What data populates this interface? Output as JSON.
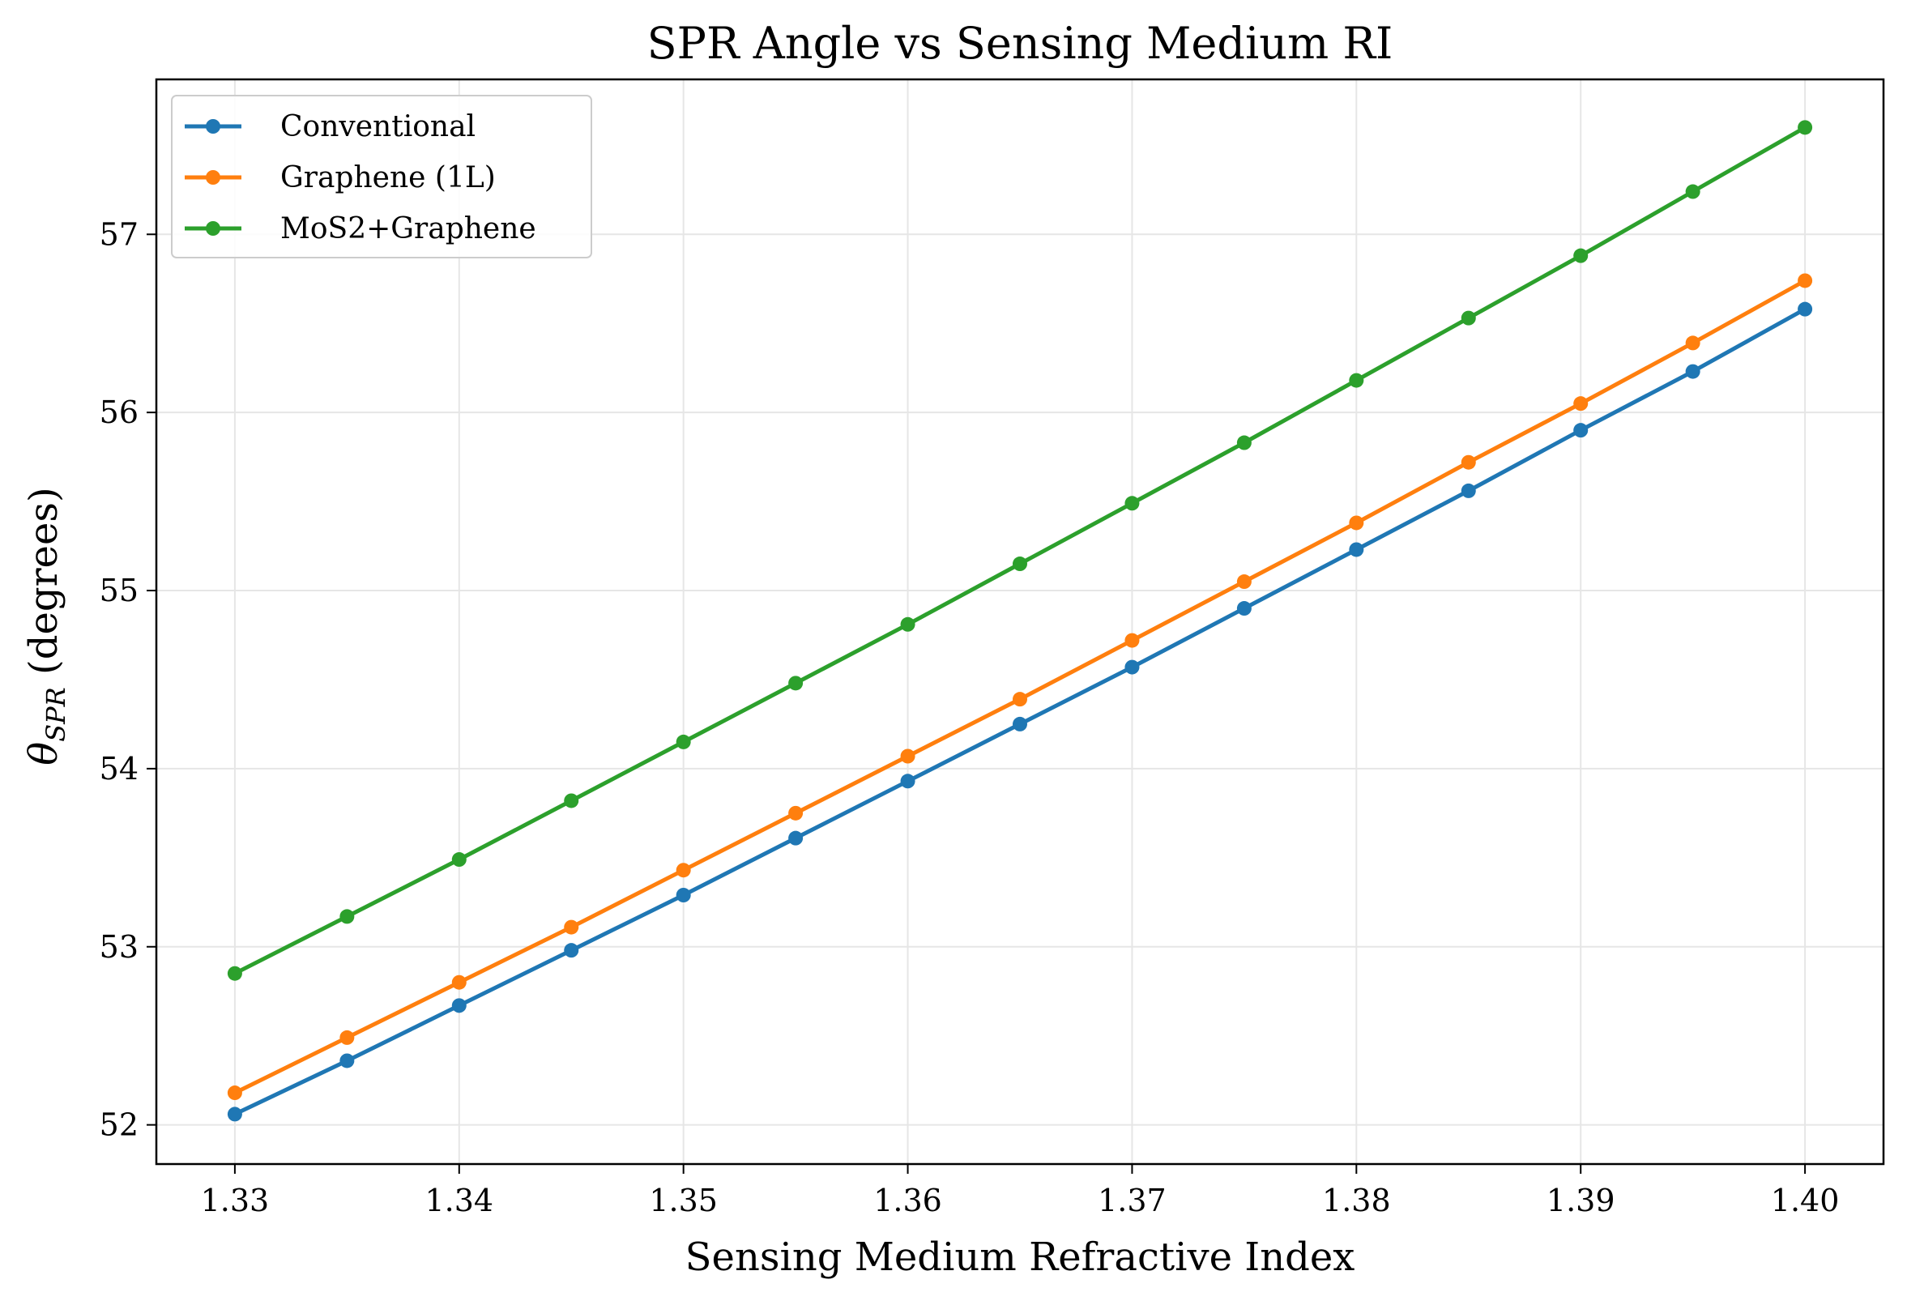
{
  "chart_data": {
    "type": "line",
    "title": "SPR Angle vs Sensing Medium RI",
    "xlabel": "Sensing Medium Refractive Index",
    "ylabel_symbol": "θ",
    "ylabel_subscript": "SPR",
    "ylabel_rest": " (degrees)",
    "x": [
      1.33,
      1.335,
      1.34,
      1.345,
      1.35,
      1.355,
      1.36,
      1.365,
      1.37,
      1.375,
      1.38,
      1.385,
      1.39,
      1.395,
      1.4
    ],
    "xlim": [
      1.3265,
      1.4035
    ],
    "ylim": [
      51.78,
      57.87
    ],
    "x_ticks": [
      1.33,
      1.34,
      1.35,
      1.36,
      1.37,
      1.38,
      1.39,
      1.4
    ],
    "x_tick_labels": [
      "1.33",
      "1.34",
      "1.35",
      "1.36",
      "1.37",
      "1.38",
      "1.39",
      "1.40"
    ],
    "y_ticks": [
      52,
      53,
      54,
      55,
      56,
      57
    ],
    "y_tick_labels": [
      "52",
      "53",
      "54",
      "55",
      "56",
      "57"
    ],
    "grid": true,
    "legend_position": "top-left",
    "series": [
      {
        "name": "Conventional",
        "color": "#1f77b4",
        "values": [
          52.06,
          52.36,
          52.67,
          52.98,
          53.29,
          53.61,
          53.93,
          54.25,
          54.57,
          54.9,
          55.23,
          55.56,
          55.9,
          56.23,
          56.58
        ]
      },
      {
        "name": "Graphene (1L)",
        "color": "#ff7f0e",
        "values": [
          52.18,
          52.49,
          52.8,
          53.11,
          53.43,
          53.75,
          54.07,
          54.39,
          54.72,
          55.05,
          55.38,
          55.72,
          56.05,
          56.39,
          56.74
        ]
      },
      {
        "name": "MoS2+Graphene",
        "color": "#2ca02c",
        "values": [
          52.85,
          53.17,
          53.49,
          53.82,
          54.15,
          54.48,
          54.81,
          55.15,
          55.49,
          55.83,
          56.18,
          56.53,
          56.88,
          57.24,
          57.6
        ]
      }
    ]
  }
}
